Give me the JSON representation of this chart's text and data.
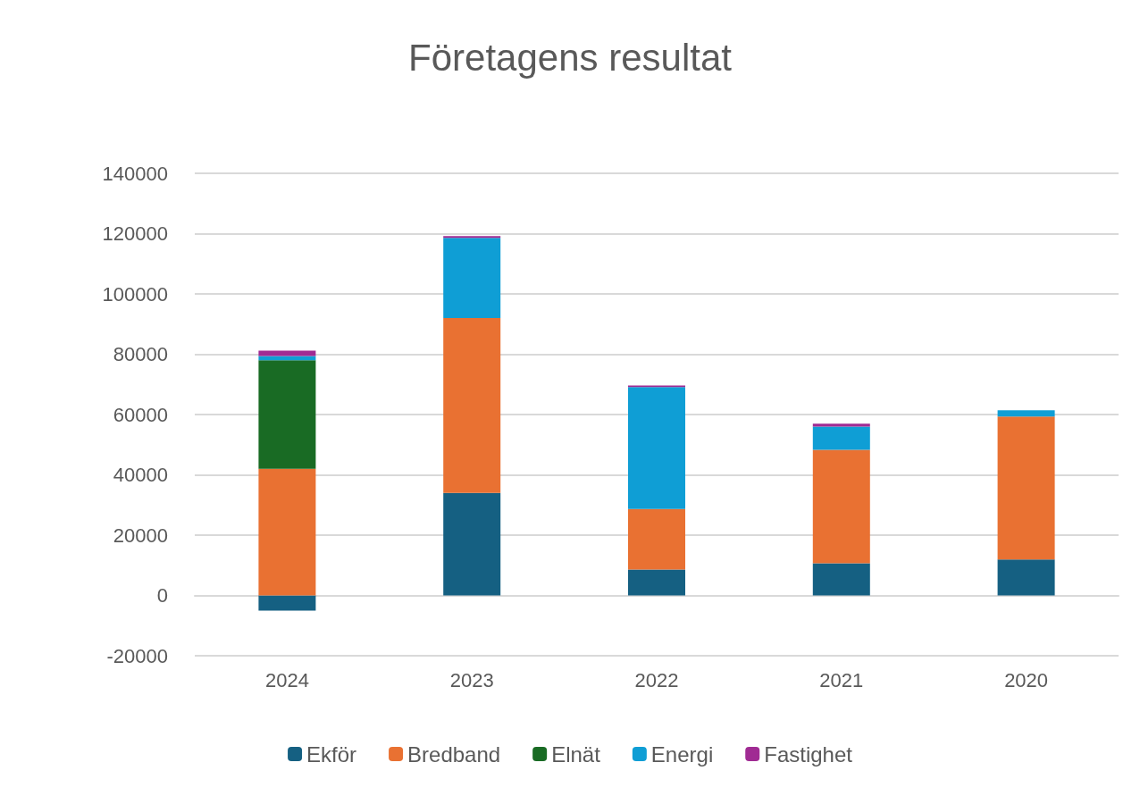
{
  "chart_data": {
    "type": "bar",
    "title": "Företagens resultat",
    "categories": [
      "2024",
      "2023",
      "2022",
      "2021",
      "2020"
    ],
    "stacked": true,
    "series": [
      {
        "name": "Ekför",
        "color": "#156082",
        "values": [
          -5000,
          34000,
          8600,
          10700,
          11900
        ]
      },
      {
        "name": "Bredband",
        "color": "#e97132",
        "values": [
          42000,
          58000,
          20100,
          37600,
          47400
        ]
      },
      {
        "name": "Elnät",
        "color": "#196b24",
        "values": [
          36000,
          null,
          null,
          null,
          null
        ]
      },
      {
        "name": "Energi",
        "color": "#0f9ed5",
        "values": [
          1400,
          26600,
          40400,
          7700,
          2100
        ]
      },
      {
        "name": "Fastighet",
        "color": "#a02b93",
        "values": [
          1800,
          600,
          500,
          1000,
          null
        ]
      }
    ],
    "ylim": [
      -20000,
      140000
    ],
    "yticks": [
      -20000,
      0,
      20000,
      40000,
      60000,
      80000,
      100000,
      120000,
      140000
    ],
    "grid": "y",
    "legend": "bottom"
  }
}
